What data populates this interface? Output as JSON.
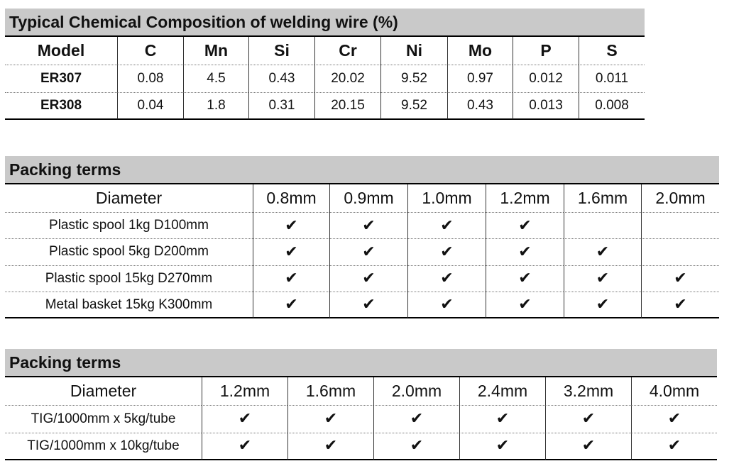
{
  "tables": [
    {
      "title": "Typical Chemical Composition of welding wire (%)",
      "header": [
        "Model",
        "C",
        "Mn",
        "Si",
        "Cr",
        "Ni",
        "Mo",
        "P",
        "S"
      ],
      "rows": [
        [
          "ER307",
          "0.08",
          "4.5",
          "0.43",
          "20.02",
          "9.52",
          "0.97",
          "0.012",
          "0.011"
        ],
        [
          "ER308",
          "0.04",
          "1.8",
          "0.31",
          "20.15",
          "9.52",
          "0.43",
          "0.013",
          "0.008"
        ]
      ]
    },
    {
      "title": "Packing terms",
      "header": [
        "Diameter",
        "0.8mm",
        "0.9mm",
        "1.0mm",
        "1.2mm",
        "1.6mm",
        "2.0mm"
      ],
      "rows": [
        [
          "Plastic spool 1kg D100mm",
          "✔",
          "✔",
          "✔",
          "✔",
          null,
          null
        ],
        [
          "Plastic spool 5kg D200mm",
          "✔",
          "✔",
          "✔",
          "✔",
          "✔",
          null
        ],
        [
          "Plastic spool 15kg D270mm",
          "✔",
          "✔",
          "✔",
          "✔",
          "✔",
          "✔"
        ],
        [
          "Metal basket 15kg K300mm",
          "✔",
          "✔",
          "✔",
          "✔",
          "✔",
          "✔"
        ]
      ]
    },
    {
      "title": "Packing terms",
      "header": [
        "Diameter",
        "1.2mm",
        "1.6mm",
        "2.0mm",
        "2.4mm",
        "3.2mm",
        "4.0mm"
      ],
      "rows": [
        [
          "TIG/1000mm x 5kg/tube",
          "✔",
          "✔",
          "✔",
          "✔",
          "✔",
          "✔"
        ],
        [
          "TIG/1000mm x 10kg/tube",
          "✔",
          "✔",
          "✔",
          "✔",
          "✔",
          "✔"
        ]
      ]
    }
  ]
}
